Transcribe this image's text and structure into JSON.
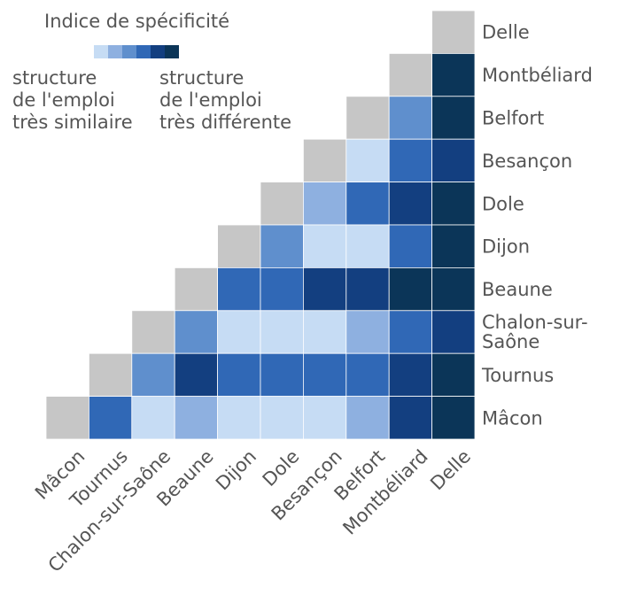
{
  "legend": {
    "title": "Indice de spécificité",
    "low_label": "structure\nde l'emploi\ntrès similaire",
    "high_label": "structure\nde l'emploi\ntrès différente",
    "colors": [
      "#c6dcf4",
      "#8eb0e0",
      "#5f8fcd",
      "#3068b6",
      "#133f80",
      "#0b3558"
    ]
  },
  "chart_data": {
    "type": "heatmap",
    "title": "Indice de spécificité",
    "x_categories": [
      "Mâcon",
      "Tournus",
      "Chalon-sur-Saône",
      "Beaune",
      "Dijon",
      "Dole",
      "Besançon",
      "Belfort",
      "Montbéliard",
      "Delle"
    ],
    "y_categories": [
      "Delle",
      "Montbéliard",
      "Belfort",
      "Besançon",
      "Dole",
      "Dijon",
      "Beaune",
      "Chalon-sur-Saône",
      "Tournus",
      "Mâcon"
    ],
    "diagonal_color": "#c6c6c6",
    "palette": [
      "#c6dcf4",
      "#8eb0e0",
      "#5f8fcd",
      "#3068b6",
      "#133f80",
      "#0b3558"
    ],
    "levels": [
      [
        null,
        null,
        null,
        null,
        null,
        null,
        null,
        null,
        null,
        null
      ],
      [
        null,
        null,
        null,
        null,
        null,
        null,
        null,
        null,
        null,
        5
      ],
      [
        null,
        null,
        null,
        null,
        null,
        null,
        null,
        null,
        2,
        5
      ],
      [
        null,
        null,
        null,
        null,
        null,
        null,
        null,
        0,
        3,
        4
      ],
      [
        null,
        null,
        null,
        null,
        null,
        null,
        1,
        3,
        4,
        5
      ],
      [
        null,
        null,
        null,
        null,
        null,
        2,
        0,
        0,
        3,
        5
      ],
      [
        null,
        null,
        null,
        null,
        3,
        3,
        4,
        4,
        5,
        5
      ],
      [
        null,
        null,
        null,
        2,
        0,
        0,
        0,
        1,
        3,
        4
      ],
      [
        null,
        null,
        2,
        4,
        3,
        3,
        3,
        3,
        4,
        5
      ],
      [
        null,
        3,
        0,
        1,
        0,
        0,
        0,
        1,
        4,
        5
      ]
    ]
  }
}
